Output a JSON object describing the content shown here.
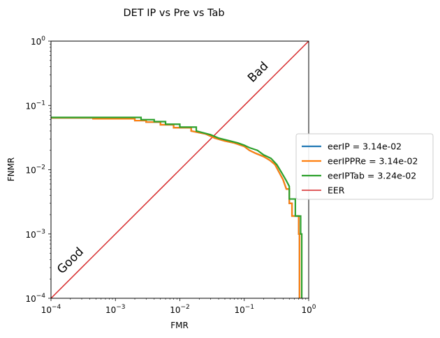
{
  "chart_data": {
    "type": "line",
    "title": "DET IP vs Pre vs Tab",
    "xlabel": "FMR",
    "ylabel": "FNMR",
    "xscale": "log",
    "yscale": "log",
    "xlim": [
      0.0001,
      1
    ],
    "ylim": [
      0.0001,
      1
    ],
    "grid": false,
    "legend_placement": "center-right-outside",
    "x_ticks": [
      {
        "value": 0.0001,
        "base": "10",
        "exp": "−4"
      },
      {
        "value": 0.001,
        "base": "10",
        "exp": "−3"
      },
      {
        "value": 0.01,
        "base": "10",
        "exp": "−2"
      },
      {
        "value": 0.1,
        "base": "10",
        "exp": "−1"
      },
      {
        "value": 1,
        "base": "10",
        "exp": "0"
      }
    ],
    "y_ticks": [
      {
        "value": 0.0001,
        "base": "10",
        "exp": "−4"
      },
      {
        "value": 0.001,
        "base": "10",
        "exp": "−3"
      },
      {
        "value": 0.01,
        "base": "10",
        "exp": "−2"
      },
      {
        "value": 0.1,
        "base": "10",
        "exp": "−1"
      },
      {
        "value": 1,
        "base": "10",
        "exp": "0"
      }
    ],
    "annotations": [
      {
        "text": "Bad",
        "x": 0.18,
        "y": 0.3
      },
      {
        "text": "Good",
        "x": 0.00022,
        "y": 0.00035
      }
    ],
    "series": [
      {
        "name": "eerIP = 3.14e-02",
        "color": "#1f77b4",
        "x": [
          0.0001,
          0.00045,
          0.00045,
          0.002,
          0.002,
          0.003,
          0.003,
          0.005,
          0.005,
          0.008,
          0.008,
          0.015,
          0.015,
          0.025,
          0.035,
          0.05,
          0.07,
          0.1,
          0.12,
          0.15,
          0.2,
          0.25,
          0.3,
          0.35,
          0.4,
          0.45,
          0.5,
          0.5,
          0.55,
          0.55,
          0.7,
          0.7,
          0.72,
          0.72
        ],
        "y": [
          0.064,
          0.064,
          0.062,
          0.062,
          0.058,
          0.058,
          0.055,
          0.055,
          0.05,
          0.05,
          0.045,
          0.045,
          0.04,
          0.036,
          0.031,
          0.028,
          0.026,
          0.023,
          0.02,
          0.018,
          0.016,
          0.014,
          0.012,
          0.009,
          0.007,
          0.005,
          0.005,
          0.003,
          0.003,
          0.0019,
          0.0019,
          0.001,
          0.001,
          0.0001
        ]
      },
      {
        "name": "eerIPPRe = 3.14e-02",
        "color": "#ff7f0e",
        "x": [
          0.0001,
          0.00045,
          0.00045,
          0.002,
          0.002,
          0.003,
          0.003,
          0.005,
          0.005,
          0.008,
          0.008,
          0.015,
          0.015,
          0.025,
          0.035,
          0.05,
          0.07,
          0.1,
          0.12,
          0.15,
          0.2,
          0.25,
          0.3,
          0.35,
          0.4,
          0.45,
          0.5,
          0.5,
          0.55,
          0.55,
          0.7,
          0.7,
          0.72,
          0.72
        ],
        "y": [
          0.064,
          0.064,
          0.062,
          0.062,
          0.058,
          0.058,
          0.055,
          0.055,
          0.05,
          0.05,
          0.045,
          0.045,
          0.04,
          0.036,
          0.031,
          0.028,
          0.026,
          0.023,
          0.02,
          0.018,
          0.016,
          0.014,
          0.012,
          0.009,
          0.007,
          0.005,
          0.005,
          0.003,
          0.003,
          0.0019,
          0.0019,
          0.001,
          0.001,
          0.0001
        ]
      },
      {
        "name": "eerIPTab = 3.24e-02",
        "color": "#2ca02c",
        "x": [
          0.0001,
          0.0025,
          0.0025,
          0.004,
          0.004,
          0.006,
          0.006,
          0.01,
          0.01,
          0.018,
          0.018,
          0.03,
          0.04,
          0.06,
          0.08,
          0.1,
          0.12,
          0.16,
          0.2,
          0.26,
          0.32,
          0.38,
          0.44,
          0.5,
          0.5,
          0.62,
          0.62,
          0.75,
          0.75,
          0.78,
          0.78
        ],
        "y": [
          0.065,
          0.065,
          0.06,
          0.06,
          0.056,
          0.056,
          0.051,
          0.051,
          0.046,
          0.046,
          0.04,
          0.035,
          0.031,
          0.028,
          0.026,
          0.024,
          0.022,
          0.02,
          0.017,
          0.015,
          0.012,
          0.009,
          0.007,
          0.0055,
          0.0035,
          0.0035,
          0.0019,
          0.0019,
          0.001,
          0.001,
          0.0001
        ]
      },
      {
        "name": "EER",
        "color": "#d62728",
        "x": [
          0.0001,
          1
        ],
        "y": [
          0.0001,
          1
        ]
      }
    ]
  }
}
